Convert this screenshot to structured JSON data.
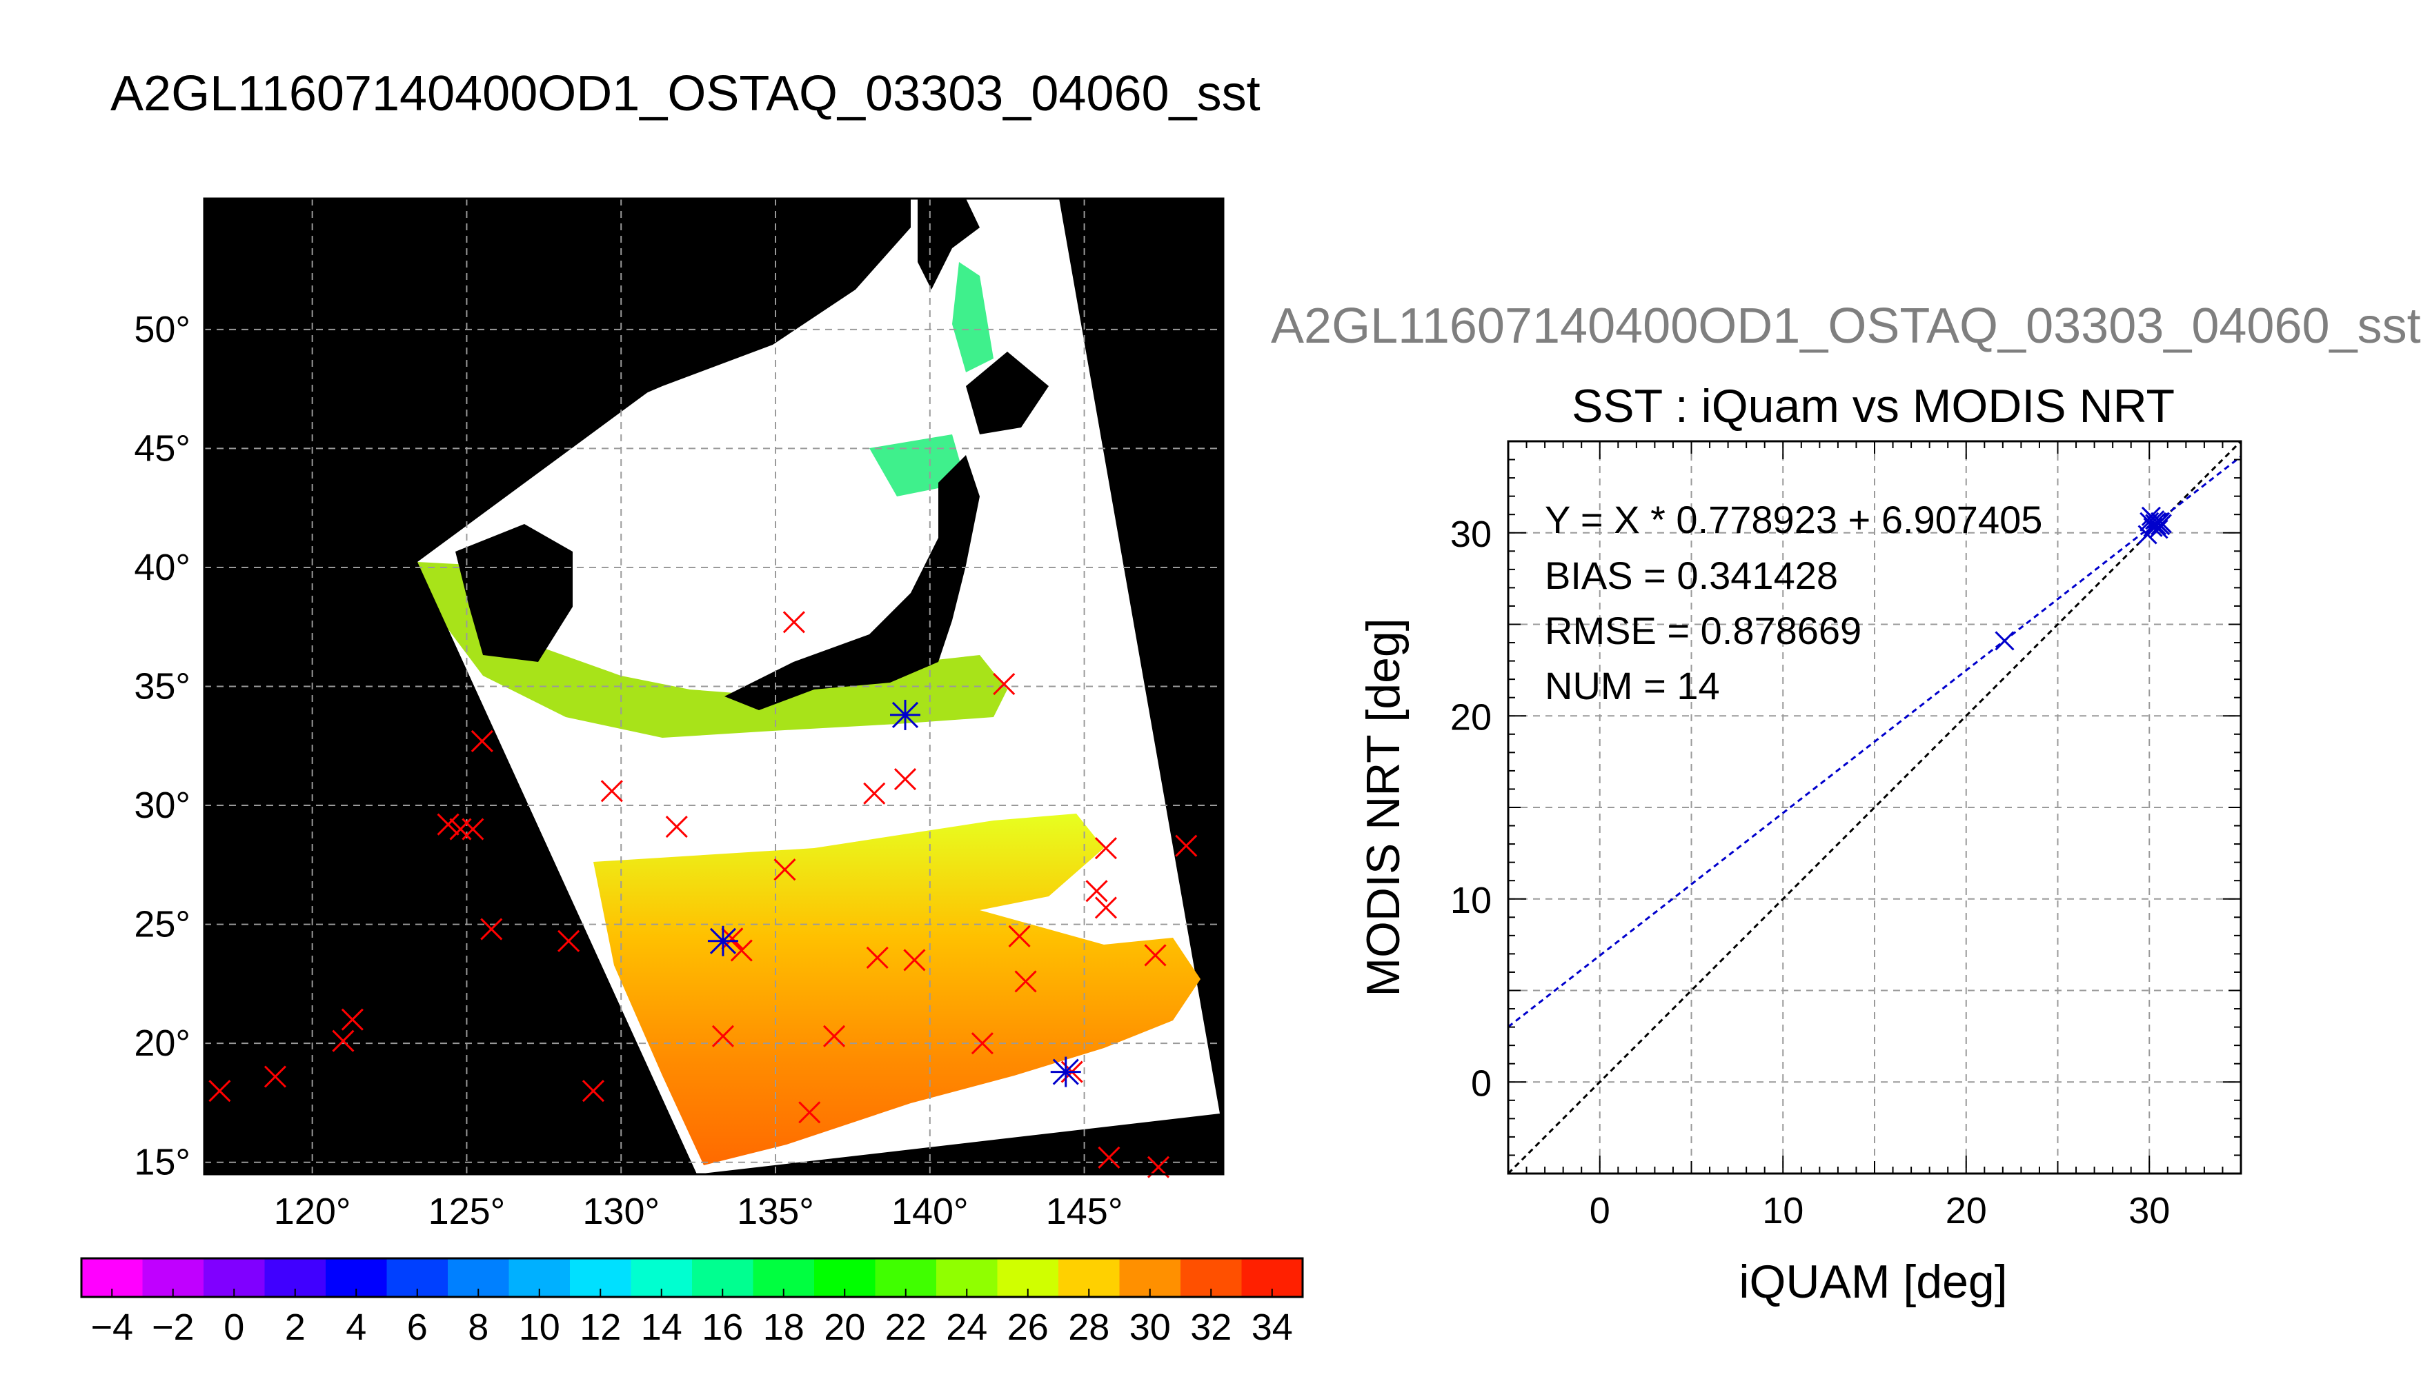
{
  "title": "A2GL11607140400OD1_OSTAQ_03303_04060_sst",
  "scatter_header": "A2GL11607140400OD1_OSTAQ_03303_04060_sst",
  "colors": {
    "land": "#000000",
    "cloud": "#ffffff",
    "insitu_marker": "#ff0000",
    "matchup_marker": "#0000cc",
    "fit_line": "#0000cc",
    "identity_line": "#000000",
    "grid": "#9a9a9a"
  },
  "map": {
    "lat_labels": [
      "15°",
      "20°",
      "25°",
      "30°",
      "35°",
      "40°",
      "45°",
      "50°"
    ],
    "lat_values": [
      15,
      20,
      25,
      30,
      35,
      40,
      45,
      50
    ],
    "lon_labels": [
      "120°",
      "125°",
      "130°",
      "135°",
      "140°",
      "145°"
    ],
    "lon_values": [
      120,
      125,
      130,
      135,
      140,
      145
    ],
    "lon_range": [
      116.5,
      149.5
    ],
    "lat_range": [
      14.5,
      55.5
    ],
    "insitu_points": [
      [
        117,
        18
      ],
      [
        118.8,
        18.6
      ],
      [
        121,
        20.1
      ],
      [
        121.3,
        21
      ],
      [
        124.4,
        29.2
      ],
      [
        124.8,
        29
      ],
      [
        125.2,
        29
      ],
      [
        125.5,
        32.7
      ],
      [
        125.8,
        24.8
      ],
      [
        128.3,
        24.3
      ],
      [
        129.1,
        18
      ],
      [
        129.7,
        30.6
      ],
      [
        131.8,
        29.1
      ],
      [
        133.3,
        20.3
      ],
      [
        133.6,
        24.4
      ],
      [
        133.9,
        23.9
      ],
      [
        135.3,
        27.3
      ],
      [
        135.6,
        37.7
      ],
      [
        136.1,
        17.1
      ],
      [
        136.9,
        20.3
      ],
      [
        138.2,
        30.5
      ],
      [
        138.3,
        23.6
      ],
      [
        139.2,
        31.1
      ],
      [
        139.5,
        23.5
      ],
      [
        141.7,
        20
      ],
      [
        142.4,
        35.1
      ],
      [
        142.9,
        24.5
      ],
      [
        143.1,
        22.6
      ],
      [
        144.6,
        18.8
      ],
      [
        145.4,
        26.4
      ],
      [
        145.7,
        25.7
      ],
      [
        145.7,
        28.2
      ],
      [
        145.8,
        15.2
      ],
      [
        147.3,
        23.7
      ],
      [
        147.4,
        14.8
      ],
      [
        148.3,
        28.3
      ]
    ],
    "matchup_points": [
      [
        133.3,
        24.3
      ],
      [
        139.2,
        33.8
      ],
      [
        144.4,
        18.8
      ]
    ]
  },
  "colorbar": {
    "labels": [
      "−4",
      "−2",
      "0",
      "2",
      "4",
      "6",
      "8",
      "10",
      "12",
      "14",
      "16",
      "18",
      "20",
      "22",
      "24",
      "26",
      "28",
      "30",
      "32",
      "34"
    ],
    "values": [
      -4,
      -2,
      0,
      2,
      4,
      6,
      8,
      10,
      12,
      14,
      16,
      18,
      20,
      22,
      24,
      26,
      28,
      30,
      32,
      34
    ],
    "range": [
      -5,
      35
    ],
    "colors": [
      "#ff00ff",
      "#c000ff",
      "#8000ff",
      "#4000ff",
      "#0000ff",
      "#0040ff",
      "#0080ff",
      "#00b0ff",
      "#00e0ff",
      "#00ffd0",
      "#00ff90",
      "#00ff40",
      "#00ff00",
      "#40ff00",
      "#90ff00",
      "#d0ff00",
      "#ffd000",
      "#ff9000",
      "#ff5000",
      "#ff2000"
    ]
  },
  "chart_data": {
    "type": "scatter",
    "title": "SST : iQuam vs MODIS NRT",
    "xlabel": "iQUAM [deg]",
    "ylabel": "MODIS NRT [deg]",
    "xlim": [
      -5,
      35
    ],
    "ylim": [
      -5,
      35
    ],
    "x_ticks": [
      0,
      10,
      20,
      30
    ],
    "y_ticks": [
      0,
      10,
      20,
      30
    ],
    "x_tick_labels": [
      "0",
      "10",
      "20",
      "30"
    ],
    "y_tick_labels": [
      "0",
      "10",
      "20",
      "30"
    ],
    "grid": true,
    "stats": {
      "equation": "Y = X * 0.778923 + 6.907405",
      "bias": "BIAS = 0.341428",
      "rmse": "RMSE = 0.878669",
      "num": "NUM = 14"
    },
    "fit": {
      "slope": 0.778923,
      "intercept": 6.907405
    },
    "points": [
      {
        "x": 22.1,
        "y": 24.1
      },
      {
        "x": 29.9,
        "y": 29.9
      },
      {
        "x": 30.0,
        "y": 30.6
      },
      {
        "x": 30.1,
        "y": 30.9
      },
      {
        "x": 30.2,
        "y": 30.3
      },
      {
        "x": 30.3,
        "y": 30.5
      },
      {
        "x": 30.3,
        "y": 30.7
      },
      {
        "x": 30.4,
        "y": 30.4
      },
      {
        "x": 30.4,
        "y": 30.6
      },
      {
        "x": 30.5,
        "y": 30.2
      },
      {
        "x": 30.5,
        "y": 30.5
      },
      {
        "x": 30.6,
        "y": 30.4
      },
      {
        "x": 30.6,
        "y": 30.6
      },
      {
        "x": 30.7,
        "y": 30.5
      }
    ]
  }
}
